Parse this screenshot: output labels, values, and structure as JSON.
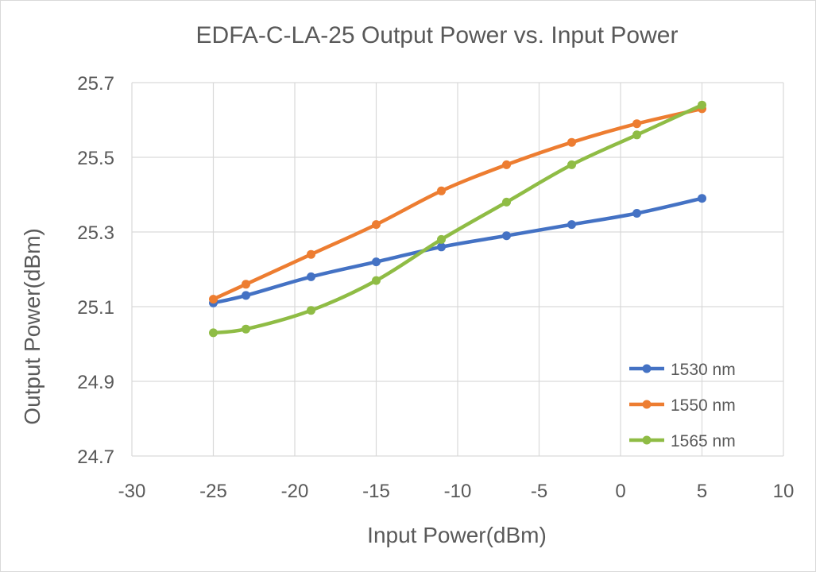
{
  "chart_data": {
    "type": "line",
    "title": "EDFA-C-LA-25  Output Power vs. Input Power",
    "xlabel": "Input Power(dBm)",
    "ylabel": "Output Power(dBm)",
    "xlim": [
      -30,
      10
    ],
    "ylim": [
      24.7,
      25.7
    ],
    "xticks": [
      -30,
      -25,
      -20,
      -15,
      -10,
      -5,
      0,
      5,
      10
    ],
    "yticks": [
      24.7,
      24.9,
      25.1,
      25.3,
      25.5,
      25.7
    ],
    "ytick_labels": [
      "24.7",
      "24.9",
      "25.1",
      "25.3",
      "25.5",
      "25.7"
    ],
    "grid": true,
    "legend_position": "bottom-right",
    "x": [
      -25,
      -23,
      -19,
      -15,
      -11,
      -7,
      -3,
      1,
      5
    ],
    "series": [
      {
        "name": "1530 nm",
        "color": "#4472c4",
        "values": [
          25.11,
          25.13,
          25.18,
          25.22,
          25.26,
          25.29,
          25.32,
          25.35,
          25.39
        ]
      },
      {
        "name": "1550 nm",
        "color": "#ed7d31",
        "values": [
          25.12,
          25.16,
          25.24,
          25.32,
          25.41,
          25.48,
          25.54,
          25.59,
          25.63
        ]
      },
      {
        "name": "1565 nm",
        "color": "#8fbc45",
        "values": [
          25.03,
          25.04,
          25.09,
          25.17,
          25.28,
          25.38,
          25.48,
          25.56,
          25.64
        ]
      }
    ]
  }
}
